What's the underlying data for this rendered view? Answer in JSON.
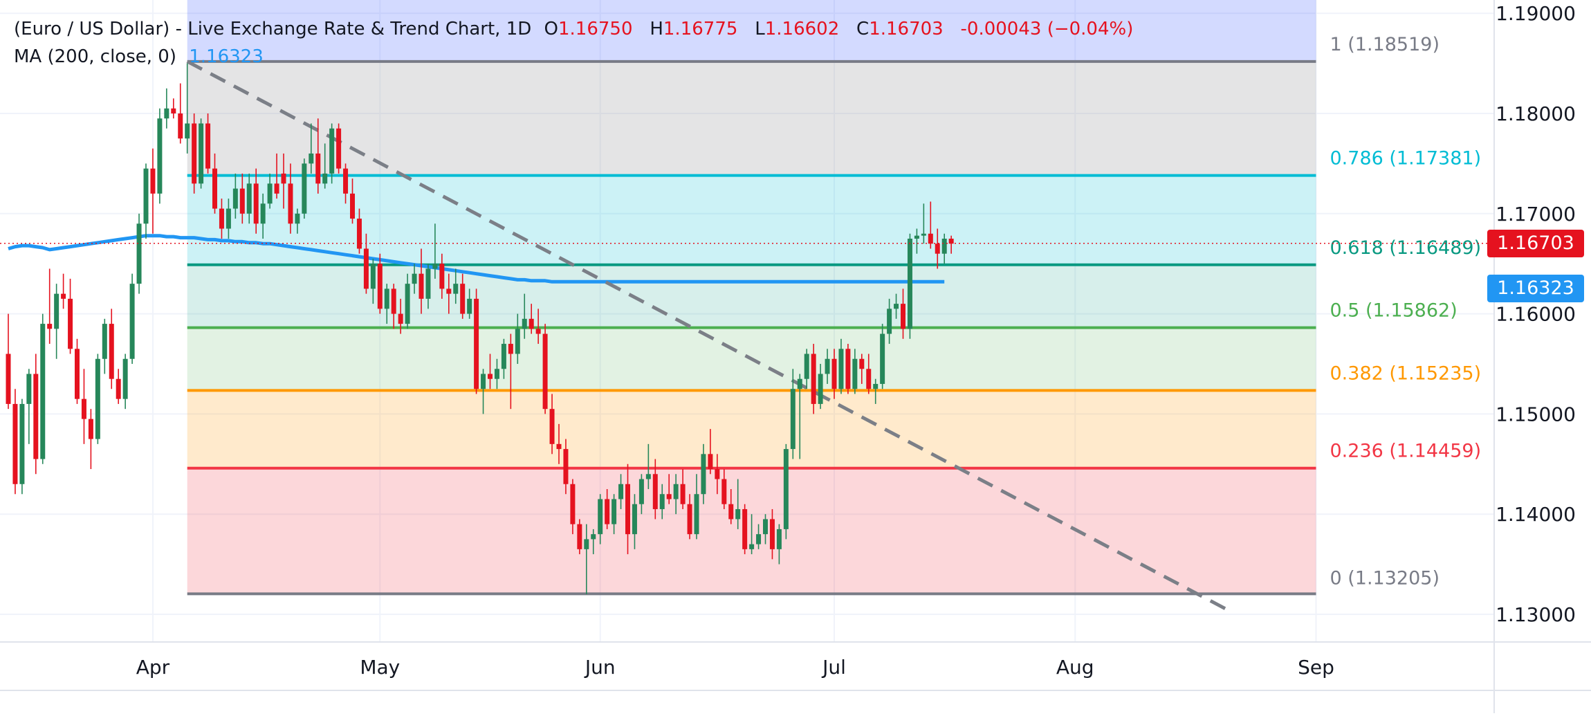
{
  "header": {
    "title": "(Euro / US Dollar) - Live Exchange Rate & Trend Chart, 1D",
    "open_key": "O",
    "open": "1.16750",
    "high_key": "H",
    "high": "1.16775",
    "low_key": "L",
    "low": "1.16602",
    "close_key": "C",
    "close": "1.16703",
    "change": "-0.00043 (−0.04%)",
    "ma_label": "MA (200, close, 0)",
    "ma_value": "1.16323"
  },
  "price_tags": {
    "last": "1.16703",
    "ma": "1.16323"
  },
  "colors": {
    "up": "#26875a",
    "down": "#e5121f",
    "ma": "#2196f3",
    "trend": "#7b7f87",
    "last_tag": "#e5121f",
    "ma_tag": "#2196f3"
  },
  "chart_data": {
    "type": "candlestick",
    "symbol": "EUR/USD",
    "timeframe": "1D",
    "x_tick_labels": [
      "Apr",
      "May",
      "Jun",
      "Jul",
      "Aug",
      "Sep"
    ],
    "y_tick_labels": [
      "1.19000",
      "1.18000",
      "1.17000",
      "1.16000",
      "1.15000",
      "1.14000",
      "1.13000"
    ],
    "ylim": [
      1.1275,
      1.192
    ],
    "grid": true,
    "fib_levels": [
      {
        "ratio": "1",
        "price": 1.18519,
        "label": "1 (1.18519)",
        "color": "#787b86",
        "fill": "rgba(56,88,255,0.22)"
      },
      {
        "ratio": "0.786",
        "price": 1.17381,
        "label": "0.786 (1.17381)",
        "color": "#00bcd4",
        "fill": "rgba(150,150,155,0.26)"
      },
      {
        "ratio": "0.618",
        "price": 1.16489,
        "label": "0.618 (1.16489)",
        "color": "#089981",
        "fill": "rgba(0,188,212,0.20)"
      },
      {
        "ratio": "0.5",
        "price": 1.15862,
        "label": "0.5 (1.15862)",
        "color": "#4caf50",
        "fill": "rgba(8,153,129,0.16)"
      },
      {
        "ratio": "0.382",
        "price": 1.15235,
        "label": "0.382 (1.15235)",
        "color": "#ff9800",
        "fill": "rgba(76,175,80,0.16)"
      },
      {
        "ratio": "0.236",
        "price": 1.14459,
        "label": "0.236 (1.14459)",
        "color": "#f23645",
        "fill": "rgba(255,152,0,0.20)"
      },
      {
        "ratio": "0",
        "price": 1.13205,
        "label": "0 (1.13205)",
        "color": "#787b86",
        "fill": "rgba(242,54,69,0.20)"
      }
    ],
    "ohlc": [
      [
        1.156,
        1.16,
        1.1505,
        1.151
      ],
      [
        1.151,
        1.1525,
        1.142,
        1.143
      ],
      [
        1.143,
        1.1515,
        1.142,
        1.151
      ],
      [
        1.151,
        1.1545,
        1.147,
        1.154
      ],
      [
        1.154,
        1.156,
        1.144,
        1.1455
      ],
      [
        1.1455,
        1.16,
        1.145,
        1.159
      ],
      [
        1.159,
        1.1645,
        1.157,
        1.1585
      ],
      [
        1.1585,
        1.163,
        1.1555,
        1.162
      ],
      [
        1.162,
        1.164,
        1.1605,
        1.1615
      ],
      [
        1.1615,
        1.1635,
        1.156,
        1.1565
      ],
      [
        1.1565,
        1.1575,
        1.151,
        1.1515
      ],
      [
        1.1515,
        1.1545,
        1.147,
        1.1495
      ],
      [
        1.1495,
        1.1505,
        1.1445,
        1.1475
      ],
      [
        1.1475,
        1.156,
        1.147,
        1.1555
      ],
      [
        1.1555,
        1.1595,
        1.154,
        1.159
      ],
      [
        1.159,
        1.1605,
        1.1525,
        1.1535
      ],
      [
        1.1535,
        1.1545,
        1.151,
        1.1515
      ],
      [
        1.1515,
        1.156,
        1.1505,
        1.1555
      ],
      [
        1.1555,
        1.164,
        1.155,
        1.163
      ],
      [
        1.163,
        1.17,
        1.162,
        1.169
      ],
      [
        1.169,
        1.175,
        1.1675,
        1.1745
      ],
      [
        1.1745,
        1.1765,
        1.168,
        1.172
      ],
      [
        1.172,
        1.1805,
        1.171,
        1.1795
      ],
      [
        1.1795,
        1.1825,
        1.1785,
        1.1805
      ],
      [
        1.1805,
        1.1815,
        1.1795,
        1.18
      ],
      [
        1.18,
        1.183,
        1.177,
        1.1775
      ],
      [
        1.1775,
        1.185,
        1.176,
        1.179
      ],
      [
        1.179,
        1.18,
        1.172,
        1.173
      ],
      [
        1.173,
        1.1795,
        1.1725,
        1.179
      ],
      [
        1.179,
        1.18,
        1.174,
        1.1745
      ],
      [
        1.1745,
        1.176,
        1.17,
        1.1705
      ],
      [
        1.1705,
        1.1715,
        1.1675,
        1.1685
      ],
      [
        1.1685,
        1.1715,
        1.1675,
        1.1705
      ],
      [
        1.1705,
        1.174,
        1.1695,
        1.1725
      ],
      [
        1.1725,
        1.174,
        1.169,
        1.17
      ],
      [
        1.17,
        1.174,
        1.169,
        1.173
      ],
      [
        1.173,
        1.1745,
        1.168,
        1.169
      ],
      [
        1.169,
        1.172,
        1.1675,
        1.171
      ],
      [
        1.171,
        1.174,
        1.1705,
        1.173
      ],
      [
        1.173,
        1.176,
        1.1715,
        1.172
      ],
      [
        1.174,
        1.176,
        1.1705,
        1.173
      ],
      [
        1.173,
        1.175,
        1.168,
        1.169
      ],
      [
        1.169,
        1.1705,
        1.168,
        1.17
      ],
      [
        1.17,
        1.1755,
        1.1695,
        1.175
      ],
      [
        1.175,
        1.179,
        1.174,
        1.176
      ],
      [
        1.176,
        1.1795,
        1.172,
        1.173
      ],
      [
        1.173,
        1.177,
        1.1725,
        1.174
      ],
      [
        1.174,
        1.179,
        1.173,
        1.1785
      ],
      [
        1.1785,
        1.179,
        1.174,
        1.1745
      ],
      [
        1.1745,
        1.175,
        1.171,
        1.172
      ],
      [
        1.172,
        1.1735,
        1.169,
        1.1695
      ],
      [
        1.1695,
        1.1705,
        1.166,
        1.1665
      ],
      [
        1.1665,
        1.168,
        1.162,
        1.1625
      ],
      [
        1.1625,
        1.1655,
        1.161,
        1.165
      ],
      [
        1.165,
        1.166,
        1.16,
        1.1605
      ],
      [
        1.1605,
        1.163,
        1.159,
        1.1625
      ],
      [
        1.1625,
        1.163,
        1.1585,
        1.16
      ],
      [
        1.16,
        1.1615,
        1.158,
        1.159
      ],
      [
        1.159,
        1.164,
        1.1585,
        1.163
      ],
      [
        1.163,
        1.165,
        1.162,
        1.164
      ],
      [
        1.164,
        1.1665,
        1.16,
        1.1615
      ],
      [
        1.1615,
        1.165,
        1.1605,
        1.1645
      ],
      [
        1.1645,
        1.169,
        1.1635,
        1.165
      ],
      [
        1.165,
        1.166,
        1.1615,
        1.1625
      ],
      [
        1.1625,
        1.164,
        1.16,
        1.162
      ],
      [
        1.162,
        1.1645,
        1.161,
        1.163
      ],
      [
        1.163,
        1.164,
        1.1595,
        1.16
      ],
      [
        1.16,
        1.1625,
        1.1595,
        1.1615
      ],
      [
        1.1615,
        1.1625,
        1.152,
        1.1525
      ],
      [
        1.1525,
        1.1545,
        1.15,
        1.154
      ],
      [
        1.154,
        1.156,
        1.1525,
        1.1535
      ],
      [
        1.1535,
        1.1555,
        1.1525,
        1.1545
      ],
      [
        1.1545,
        1.1575,
        1.1535,
        1.157
      ],
      [
        1.157,
        1.158,
        1.1505,
        1.156
      ],
      [
        1.156,
        1.16,
        1.155,
        1.1585
      ],
      [
        1.1585,
        1.162,
        1.1575,
        1.1595
      ],
      [
        1.1595,
        1.161,
        1.158,
        1.1585
      ],
      [
        1.1585,
        1.1605,
        1.157,
        1.158
      ],
      [
        1.158,
        1.159,
        1.15,
        1.1505
      ],
      [
        1.1505,
        1.152,
        1.146,
        1.147
      ],
      [
        1.147,
        1.149,
        1.145,
        1.1465
      ],
      [
        1.1465,
        1.1475,
        1.142,
        1.143
      ],
      [
        1.143,
        1.1435,
        1.138,
        1.139
      ],
      [
        1.139,
        1.1395,
        1.136,
        1.1365
      ],
      [
        1.1365,
        1.139,
        1.132,
        1.1375
      ],
      [
        1.1375,
        1.1385,
        1.136,
        1.138
      ],
      [
        1.138,
        1.142,
        1.137,
        1.1415
      ],
      [
        1.1415,
        1.1425,
        1.1385,
        1.139
      ],
      [
        1.139,
        1.142,
        1.138,
        1.1415
      ],
      [
        1.1415,
        1.144,
        1.1405,
        1.143
      ],
      [
        1.143,
        1.145,
        1.136,
        1.138
      ],
      [
        1.138,
        1.142,
        1.1365,
        1.141
      ],
      [
        1.141,
        1.144,
        1.14,
        1.1435
      ],
      [
        1.1435,
        1.147,
        1.1425,
        1.144
      ],
      [
        1.144,
        1.1455,
        1.1395,
        1.1405
      ],
      [
        1.1405,
        1.143,
        1.1395,
        1.142
      ],
      [
        1.142,
        1.144,
        1.141,
        1.1415
      ],
      [
        1.1415,
        1.144,
        1.14,
        1.143
      ],
      [
        1.143,
        1.1445,
        1.1405,
        1.141
      ],
      [
        1.141,
        1.142,
        1.1375,
        1.138
      ],
      [
        1.138,
        1.144,
        1.1375,
        1.142
      ],
      [
        1.142,
        1.147,
        1.141,
        1.146
      ],
      [
        1.146,
        1.1485,
        1.144,
        1.1445
      ],
      [
        1.1445,
        1.146,
        1.142,
        1.1435
      ],
      [
        1.1435,
        1.1445,
        1.1405,
        1.141
      ],
      [
        1.141,
        1.1425,
        1.139,
        1.1395
      ],
      [
        1.1395,
        1.1435,
        1.1385,
        1.1405
      ],
      [
        1.1405,
        1.141,
        1.136,
        1.1365
      ],
      [
        1.1365,
        1.14,
        1.136,
        1.137
      ],
      [
        1.137,
        1.139,
        1.1365,
        1.138
      ],
      [
        1.138,
        1.14,
        1.137,
        1.1395
      ],
      [
        1.1395,
        1.1405,
        1.1355,
        1.1365
      ],
      [
        1.1365,
        1.139,
        1.135,
        1.1385
      ],
      [
        1.1385,
        1.147,
        1.1375,
        1.1465
      ],
      [
        1.1465,
        1.1545,
        1.1455,
        1.1525
      ],
      [
        1.1525,
        1.154,
        1.1455,
        1.1535
      ],
      [
        1.1535,
        1.1565,
        1.1525,
        1.156
      ],
      [
        1.156,
        1.157,
        1.15,
        1.151
      ],
      [
        1.151,
        1.155,
        1.1505,
        1.154
      ],
      [
        1.154,
        1.1565,
        1.153,
        1.1555
      ],
      [
        1.1555,
        1.1565,
        1.1515,
        1.1525
      ],
      [
        1.1525,
        1.1575,
        1.152,
        1.1565
      ],
      [
        1.1565,
        1.157,
        1.152,
        1.1525
      ],
      [
        1.1525,
        1.1565,
        1.152,
        1.1555
      ],
      [
        1.1555,
        1.156,
        1.153,
        1.1545
      ],
      [
        1.1545,
        1.156,
        1.152,
        1.1525
      ],
      [
        1.1525,
        1.1535,
        1.151,
        1.153
      ],
      [
        1.153,
        1.159,
        1.1525,
        1.158
      ],
      [
        1.158,
        1.1615,
        1.157,
        1.1605
      ],
      [
        1.1605,
        1.162,
        1.1595,
        1.161
      ],
      [
        1.161,
        1.1625,
        1.1575,
        1.1585
      ],
      [
        1.1585,
        1.168,
        1.1575,
        1.1675
      ],
      [
        1.1675,
        1.1685,
        1.166,
        1.1678
      ],
      [
        1.1678,
        1.171,
        1.167,
        1.168
      ],
      [
        1.168,
        1.1712,
        1.1665,
        1.167
      ],
      [
        1.167,
        1.1685,
        1.1645,
        1.166
      ],
      [
        1.166,
        1.168,
        1.165,
        1.1675
      ],
      [
        1.1675,
        1.1678,
        1.166,
        1.167
      ]
    ],
    "ma200": [
      1.1665,
      1.1667,
      1.1668,
      1.1668,
      1.1667,
      1.1666,
      1.1664,
      1.1665,
      1.1666,
      1.1667,
      1.1668,
      1.1669,
      1.167,
      1.1671,
      1.1672,
      1.1673,
      1.1674,
      1.1675,
      1.1676,
      1.1677,
      1.1678,
      1.1678,
      1.1678,
      1.1677,
      1.1677,
      1.1676,
      1.1676,
      1.1676,
      1.1675,
      1.1674,
      1.1674,
      1.1673,
      1.1673,
      1.1672,
      1.1672,
      1.1671,
      1.1671,
      1.167,
      1.167,
      1.1669,
      1.1668,
      1.1667,
      1.1666,
      1.1665,
      1.1664,
      1.1663,
      1.1662,
      1.1661,
      1.166,
      1.1659,
      1.1658,
      1.1657,
      1.1656,
      1.1655,
      1.1654,
      1.1653,
      1.1652,
      1.1651,
      1.165,
      1.1649,
      1.1648,
      1.1647,
      1.1646,
      1.1645,
      1.1644,
      1.1643,
      1.1642,
      1.1641,
      1.164,
      1.1639,
      1.1638,
      1.1637,
      1.1636,
      1.1635,
      1.1634,
      1.1634,
      1.1633,
      1.1633,
      1.1633,
      1.1632,
      1.1632,
      1.1632,
      1.1632,
      1.1632,
      1.1632,
      1.1632,
      1.1632,
      1.1632,
      1.1632,
      1.1632,
      1.1632,
      1.1632,
      1.1632,
      1.1632,
      1.1632,
      1.1632,
      1.1632,
      1.1632,
      1.1632,
      1.1632,
      1.1632,
      1.1632,
      1.1632,
      1.1632,
      1.1632,
      1.1632,
      1.1632,
      1.1632,
      1.1632,
      1.1632,
      1.1632,
      1.1632,
      1.1632,
      1.1632,
      1.1632,
      1.1632,
      1.1632,
      1.1632,
      1.1632,
      1.1632,
      1.1632,
      1.1632,
      1.1632,
      1.1632,
      1.1632,
      1.1632,
      1.1632,
      1.1632,
      1.1632,
      1.1632,
      1.1632,
      1.1632,
      1.1632,
      1.1632,
      1.1632,
      1.1632,
      1.1632
    ],
    "trendline": {
      "from": {
        "bar": 26,
        "price": 1.18519
      },
      "to": {
        "bar": 177,
        "price": 1.1305
      }
    },
    "fib_range": {
      "from_bar": 26,
      "to_bar": 190
    },
    "last_price": 1.16703,
    "ma_last": 1.16323
  }
}
